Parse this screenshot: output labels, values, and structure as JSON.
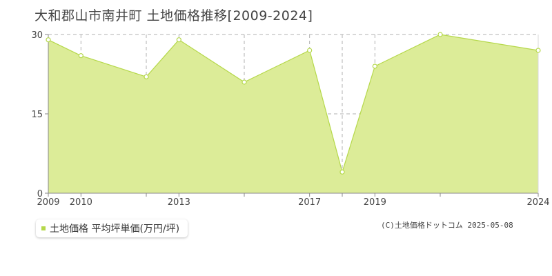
{
  "title": "大和郡山市南井町 土地価格推移[2009-2024]",
  "legend_label": "土地価格 平均坪単価(万円/坪)",
  "copyright": "(C)土地価格ドットコム 2025-05-08",
  "colors": {
    "fill": "#dcec98",
    "line": "#b5d84a",
    "grid": "#b0b0b0",
    "axis": "#888888"
  },
  "chart_data": {
    "type": "area",
    "xlim": [
      2009,
      2024
    ],
    "ylim": [
      0,
      30
    ],
    "yticks": [
      0,
      15,
      30
    ],
    "xticks": [
      2009,
      2010,
      2013,
      2017,
      2019,
      2024
    ],
    "series": [
      {
        "name": "土地価格 平均坪単価(万円/坪)",
        "points": [
          {
            "x": 2009,
            "y": 29
          },
          {
            "x": 2010,
            "y": 26
          },
          {
            "x": 2012,
            "y": 22
          },
          {
            "x": 2013,
            "y": 29
          },
          {
            "x": 2015,
            "y": 21
          },
          {
            "x": 2017,
            "y": 27
          },
          {
            "x": 2018,
            "y": 4
          },
          {
            "x": 2019,
            "y": 24
          },
          {
            "x": 2021,
            "y": 30
          },
          {
            "x": 2024,
            "y": 27
          }
        ]
      }
    ]
  }
}
